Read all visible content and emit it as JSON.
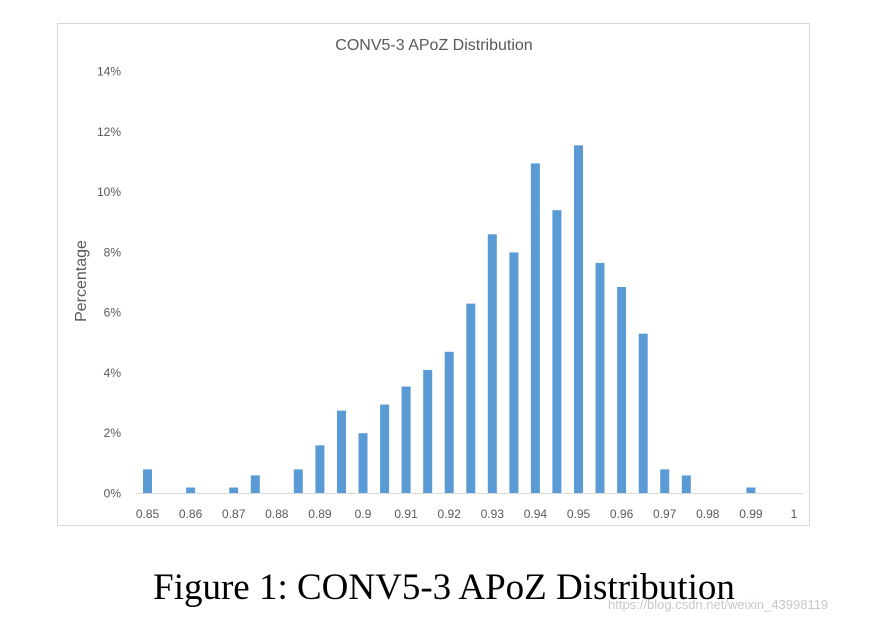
{
  "chart_data": {
    "type": "bar",
    "title": "CONV5-3 APoZ Distribution",
    "xlabel": "",
    "ylabel": "Percentage",
    "ylim": [
      0,
      14
    ],
    "yticks": [
      "0%",
      "2%",
      "4%",
      "6%",
      "8%",
      "10%",
      "12%",
      "14%"
    ],
    "xtick_labels": [
      "0.85",
      "0.86",
      "0.87",
      "0.88",
      "0.89",
      "0.9",
      "0.91",
      "0.92",
      "0.93",
      "0.94",
      "0.95",
      "0.96",
      "0.97",
      "0.98",
      "0.99",
      "1"
    ],
    "categories": [
      "0.85",
      "0.855",
      "0.86",
      "0.865",
      "0.87",
      "0.875",
      "0.88",
      "0.885",
      "0.89",
      "0.895",
      "0.9",
      "0.905",
      "0.91",
      "0.915",
      "0.92",
      "0.925",
      "0.93",
      "0.935",
      "0.94",
      "0.945",
      "0.95",
      "0.955",
      "0.96",
      "0.965",
      "0.97",
      "0.975",
      "0.98",
      "0.985",
      "0.99",
      "0.995"
    ],
    "values": [
      0.8,
      0,
      0.2,
      0,
      0.2,
      0.6,
      0,
      0.8,
      1.6,
      2.75,
      2.0,
      2.95,
      3.55,
      4.1,
      4.7,
      6.3,
      8.6,
      8.0,
      10.95,
      9.4,
      11.55,
      7.65,
      6.85,
      5.3,
      0.8,
      0.6,
      0,
      0,
      0.2,
      0
    ],
    "bar_color": "#5b9bd5",
    "grid": false
  },
  "caption": "Figure 1: CONV5-3 APoZ Distribution",
  "watermark": "https://blog.csdn.net/weixin_43998119"
}
